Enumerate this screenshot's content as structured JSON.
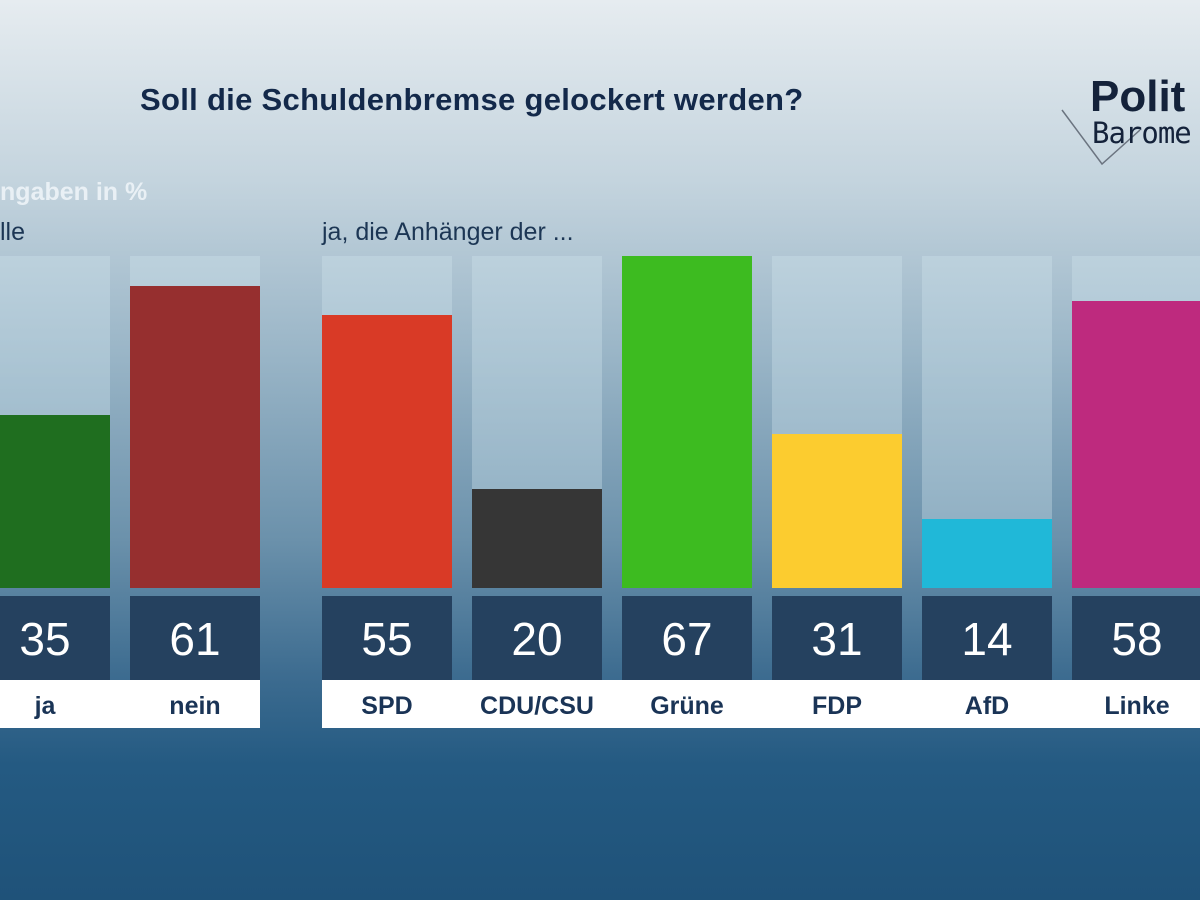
{
  "title": "Soll die Schuldenbremse gelockert werden?",
  "subtitle_units": "ngaben in %",
  "subtitle_left": "lle",
  "subtitle_right": "ja, die Anhänger der ...",
  "logo": {
    "line1": "Polit",
    "line2": "Barome"
  },
  "chart_data": [
    {
      "type": "bar",
      "title": "Soll die Schuldenbremse gelockert werden?",
      "ylim": [
        0,
        67
      ],
      "categories": [
        "ja",
        "nein"
      ],
      "values": [
        35,
        61
      ],
      "colors": [
        "#1f6e1f",
        "#962f2f"
      ]
    },
    {
      "type": "bar",
      "xlabel": "ja, die Anhänger der ...",
      "ylim": [
        0,
        67
      ],
      "categories": [
        "SPD",
        "CDU/CSU",
        "Grüne",
        "FDP",
        "AfD",
        "Linke"
      ],
      "values": [
        55,
        20,
        67,
        31,
        14,
        58
      ],
      "colors": [
        "#d93a26",
        "#363636",
        "#3dbb20",
        "#fccc2f",
        "#20b8d8",
        "#be2a7e"
      ]
    }
  ]
}
